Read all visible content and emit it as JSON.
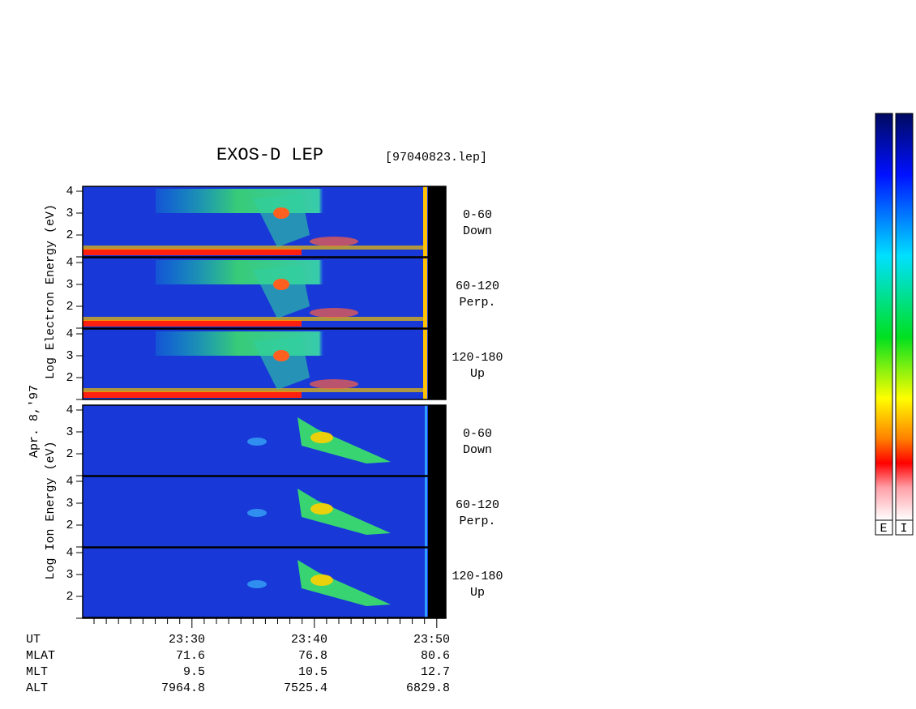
{
  "title": "EXOS-D LEP",
  "file": "[97040823.lep]",
  "date_label": "Apr. 8,'97",
  "groups": [
    {
      "ylabel": "Log  Electron  Energy (eV)",
      "panels": [
        {
          "ticks": [
            4,
            3,
            2
          ],
          "range": "0-60",
          "direction": "Down"
        },
        {
          "ticks": [
            4,
            3,
            2
          ],
          "range": "60-120",
          "direction": "Perp."
        },
        {
          "ticks": [
            4,
            3,
            2
          ],
          "range": "120-180",
          "direction": "Up"
        }
      ]
    },
    {
      "ylabel": "Log  Ion  Energy (eV)",
      "panels": [
        {
          "ticks": [
            4,
            3,
            2
          ],
          "range": "0-60",
          "direction": "Down"
        },
        {
          "ticks": [
            4,
            3,
            2
          ],
          "range": "60-120",
          "direction": "Perp."
        },
        {
          "ticks": [
            4,
            3,
            2
          ],
          "range": "120-180",
          "direction": "Up"
        }
      ]
    }
  ],
  "x_axis": {
    "row_labels": [
      "UT",
      "MLAT",
      "MLT",
      "ALT"
    ],
    "columns": [
      [
        "23:30",
        "71.6",
        "9.5",
        "7964.8"
      ],
      [
        "23:40",
        "76.8",
        "10.5",
        "7525.4"
      ],
      [
        "23:50",
        "80.6",
        "12.7",
        "6829.8"
      ]
    ]
  },
  "colorbar": {
    "labels": [
      "E",
      "I"
    ]
  }
}
